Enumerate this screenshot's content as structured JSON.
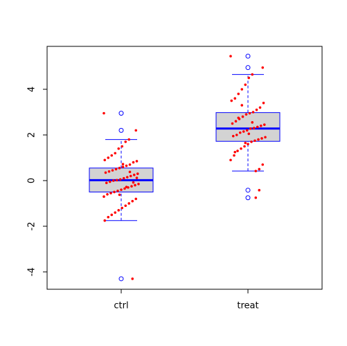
{
  "chart_data": {
    "type": "box",
    "categories": [
      "ctrl",
      "treat"
    ],
    "ylim": [
      -4.76,
      5.88
    ],
    "yticks": [
      -4,
      -2,
      0,
      2,
      4
    ],
    "box_color": "#0000ff",
    "box_fill": "#d3d3d3",
    "point_color": "#ff0000",
    "boxes": [
      {
        "whisker_low": -1.75,
        "q1": -0.5,
        "median": 0.02,
        "q3": 0.55,
        "whisker_high": 1.8,
        "outliers": [
          2.95,
          2.2,
          -4.3
        ],
        "points": [
          2.95,
          2.2,
          -4.3,
          1.8,
          1.7,
          1.5,
          1.4,
          1.2,
          1.1,
          1.0,
          0.9,
          0.85,
          0.8,
          0.7,
          0.65,
          0.6,
          0.55,
          0.5,
          0.45,
          0.4,
          0.35,
          0.3,
          0.25,
          0.2,
          0.15,
          0.1,
          0.05,
          0.02,
          0.0,
          -0.05,
          -0.1,
          -0.15,
          -0.2,
          -0.25,
          -0.3,
          -0.35,
          -0.4,
          -0.45,
          -0.5,
          -0.55,
          -0.6,
          -0.7,
          -0.8,
          -0.9,
          -1.0,
          -1.1,
          -1.2,
          -1.3,
          -1.4,
          -1.5,
          -1.6,
          -1.75,
          0.12,
          -0.08,
          0.38,
          -0.28,
          0.72,
          -0.62
        ]
      },
      {
        "whisker_low": 0.42,
        "q1": 1.72,
        "median": 2.28,
        "q3": 2.98,
        "whisker_high": 4.65,
        "outliers": [
          5.45,
          4.95,
          -0.42,
          -0.75
        ],
        "points": [
          5.45,
          4.95,
          -0.42,
          -0.75,
          4.65,
          4.5,
          4.2,
          4.0,
          3.8,
          3.6,
          3.5,
          3.4,
          3.2,
          3.1,
          3.0,
          2.95,
          2.9,
          2.8,
          2.7,
          2.6,
          2.5,
          2.45,
          2.4,
          2.35,
          2.3,
          2.28,
          2.2,
          2.15,
          2.1,
          2.0,
          1.95,
          1.9,
          1.85,
          1.8,
          1.75,
          1.7,
          1.6,
          1.5,
          1.4,
          1.3,
          1.1,
          0.9,
          0.7,
          0.5,
          0.42,
          2.55,
          2.05,
          1.65,
          3.3,
          2.75,
          1.25
        ]
      }
    ]
  }
}
